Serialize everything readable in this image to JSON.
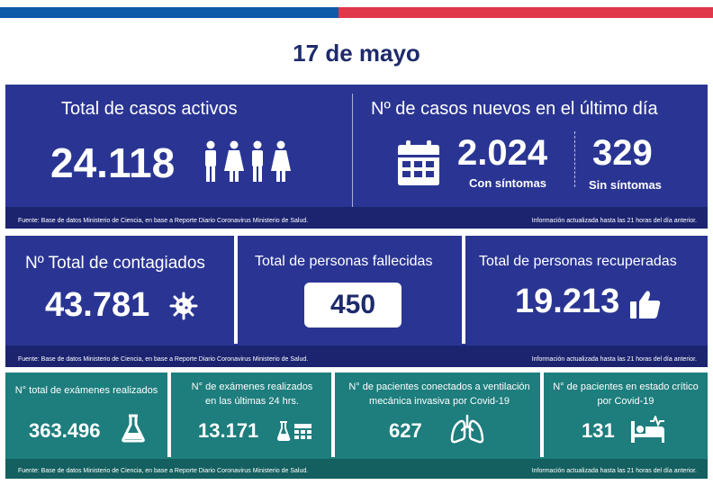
{
  "colors": {
    "flag_blue": "#0f5aa8",
    "flag_red": "#e0384a",
    "title_navy": "#1e2a6b",
    "panel_navy": "#2a3593",
    "footer_navy": "#1c2470",
    "panel_teal": "#1e7d7d",
    "footer_teal": "#145f5f"
  },
  "date": "17 de mayo",
  "panel1": {
    "active": {
      "title": "Total de casos activos",
      "value": "24.118",
      "icon": "people-icon"
    },
    "new_cases": {
      "title": "Nº de casos nuevos en el último día",
      "icon": "calendar-icon",
      "with_symptoms_value": "2.024",
      "with_symptoms_label": "Con síntomas",
      "without_symptoms_value": "329",
      "without_symptoms_label": "Sin síntomas"
    },
    "source": "Fuente: Base de datos Ministerio de Ciencia, en base a Reporte Diario Coronavirus Ministerio de Salud.",
    "updated": "Información actualizada hasta las 21 horas  del día anterior."
  },
  "panel2": {
    "infected": {
      "title": "Nº Total de contagiados",
      "value": "43.781",
      "icon": "virus-icon"
    },
    "deceased": {
      "title": "Total de personas fallecidas",
      "value": "450"
    },
    "recovered": {
      "title": "Total de personas recuperadas",
      "value": "19.213",
      "icon": "thumbs-up-icon"
    },
    "source": "Fuente: Base de datos Ministerio de Ciencia, en base a Reporte Diario Coronavirus Ministerio de Salud.",
    "updated": "Información actualizada hasta las 21 horas  del día anterior."
  },
  "panel3": {
    "exams_total": {
      "title": "N° total de exámenes realizados",
      "value": "363.496",
      "icon": "flask-icon"
    },
    "exams_24h": {
      "title_line1": "N° de exámenes realizados",
      "title_line2": "en las últimas 24 hrs.",
      "value": "13.171",
      "icon": "flask-calendar-icon"
    },
    "ventilated": {
      "title_line1": "N° de pacientes conectados a ventilación",
      "title_line2": "mecánica invasiva por Covid-19",
      "value": "627",
      "icon": "lungs-icon"
    },
    "critical": {
      "title_line1": "N° de pacientes en estado crítico",
      "title_line2": "por Covid-19",
      "value": "131",
      "icon": "hospital-bed-icon"
    },
    "source": "Fuente: Base de datos Ministerio de Ciencia, en base a Reporte Diario Coronavirus Ministerio de Salud.",
    "updated": "Información actualizada hasta las 21 horas  del día anterior."
  }
}
